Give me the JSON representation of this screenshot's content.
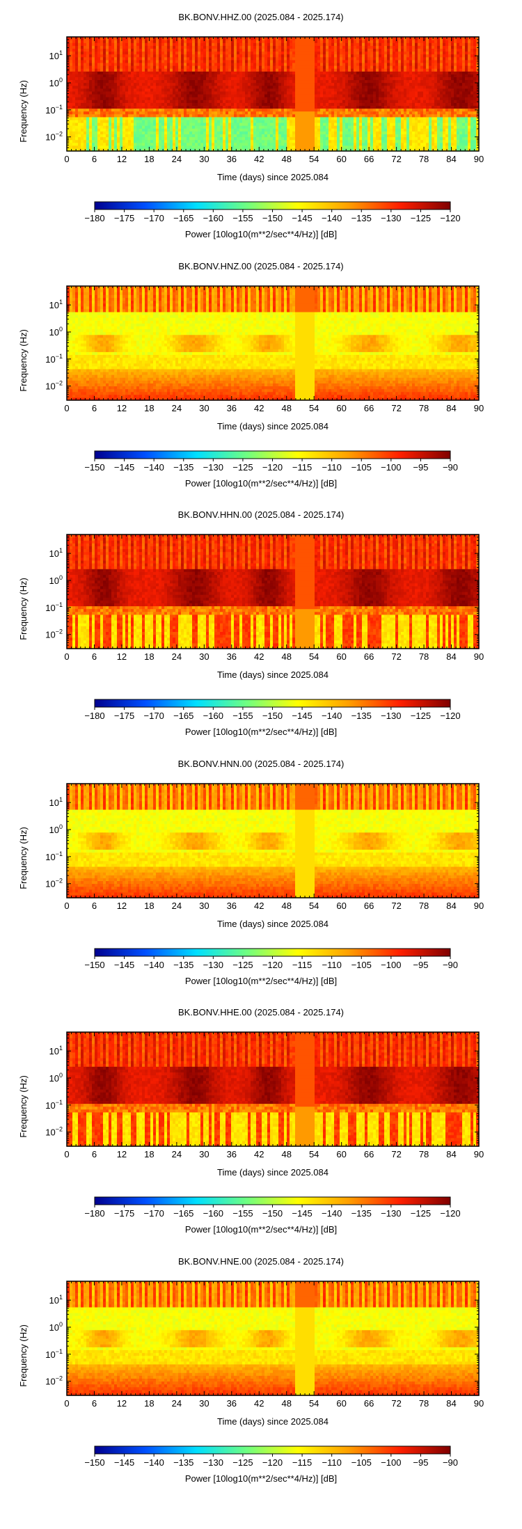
{
  "panels": [
    {
      "title": "BK.BONV.HHZ.00 (2025.084 - 2025.174)",
      "ylabel": "Frequency (Hz)",
      "xlabel": "Time (days) since 2025.084",
      "cbar_label": "Power [10log10(m**2/sec**4/Hz)] [dB]",
      "cbar_ticks": [
        "−180",
        "−175",
        "−170",
        "−165",
        "−160",
        "−155",
        "−150",
        "−145",
        "−140",
        "−135",
        "−130",
        "−125",
        "−120"
      ],
      "variant": "hh"
    },
    {
      "title": "BK.BONV.HNZ.00 (2025.084 - 2025.174)",
      "ylabel": "Frequency (Hz)",
      "xlabel": "Time (days) since 2025.084",
      "cbar_label": "Power [10log10(m**2/sec**4/Hz)] [dB]",
      "cbar_ticks": [
        "−150",
        "−145",
        "−140",
        "−135",
        "−130",
        "−125",
        "−120",
        "−115",
        "−110",
        "−105",
        "−100",
        "−95",
        "−90"
      ],
      "variant": "hn"
    },
    {
      "title": "BK.BONV.HHN.00 (2025.084 - 2025.174)",
      "ylabel": "Frequency (Hz)",
      "xlabel": "Time (days) since 2025.084",
      "cbar_label": "Power [10log10(m**2/sec**4/Hz)] [dB]",
      "cbar_ticks": [
        "−180",
        "−175",
        "−170",
        "−165",
        "−160",
        "−155",
        "−150",
        "−145",
        "−140",
        "−135",
        "−130",
        "−125",
        "−120"
      ],
      "variant": "hh"
    },
    {
      "title": "BK.BONV.HNN.00 (2025.084 - 2025.174)",
      "ylabel": "Frequency (Hz)",
      "xlabel": "Time (days) since 2025.084",
      "cbar_label": "Power [10log10(m**2/sec**4/Hz)] [dB]",
      "cbar_ticks": [
        "−150",
        "−145",
        "−140",
        "−135",
        "−130",
        "−125",
        "−120",
        "−115",
        "−110",
        "−105",
        "−100",
        "−95",
        "−90"
      ],
      "variant": "hn"
    },
    {
      "title": "BK.BONV.HHE.00 (2025.084 - 2025.174)",
      "ylabel": "Frequency (Hz)",
      "xlabel": "Time (days) since 2025.084",
      "cbar_label": "Power [10log10(m**2/sec**4/Hz)] [dB]",
      "cbar_ticks": [
        "−180",
        "−175",
        "−170",
        "−165",
        "−160",
        "−155",
        "−150",
        "−145",
        "−140",
        "−135",
        "−130",
        "−125",
        "−120"
      ],
      "variant": "hh"
    },
    {
      "title": "BK.BONV.HNE.00 (2025.084 - 2025.174)",
      "ylabel": "Frequency (Hz)",
      "xlabel": "Time (days) since 2025.084",
      "cbar_label": "Power [10log10(m**2/sec**4/Hz)] [dB]",
      "cbar_ticks": [
        "−150",
        "−145",
        "−140",
        "−135",
        "−130",
        "−125",
        "−120",
        "−115",
        "−110",
        "−105",
        "−100",
        "−95",
        "−90"
      ],
      "variant": "hn"
    }
  ],
  "chart_data": {
    "type": "heatmap",
    "x_ticks": [
      "0",
      "6",
      "12",
      "18",
      "24",
      "30",
      "36",
      "42",
      "48",
      "54",
      "60",
      "66",
      "72",
      "78",
      "84",
      "90"
    ],
    "y_ticks": [
      "10^-2",
      "10^-1",
      "10^0",
      "10^1"
    ],
    "xlim": [
      0,
      90
    ],
    "ylim_hz": [
      0.003,
      50
    ],
    "y_scale": "log",
    "colormap": "jet",
    "colormap_stops": [
      "#00008f",
      "#0050ff",
      "#00dfff",
      "#70ff80",
      "#ffff00",
      "#ff9f00",
      "#ff2000",
      "#800000"
    ]
  }
}
